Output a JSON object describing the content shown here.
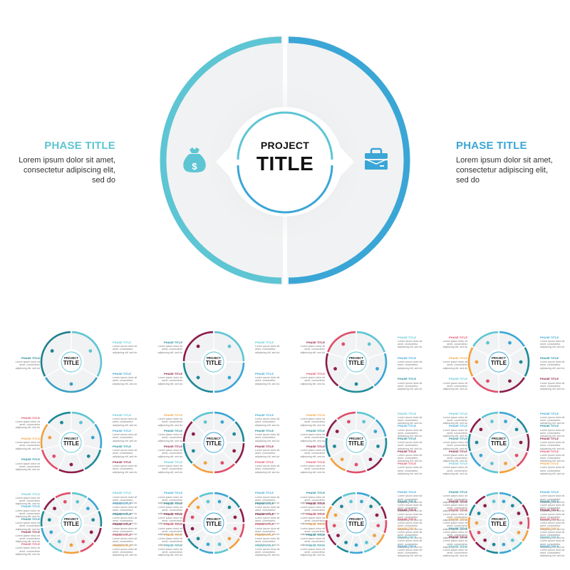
{
  "hero": {
    "center": {
      "line1": "PROJECT",
      "line2": "TITLE"
    },
    "phases": [
      {
        "title": "PHASE TITLE",
        "description": "Lorem ipsum dolor sit amet, consectetur adipiscing elit, sed do",
        "icon": "money-bag-icon",
        "color": "#5dc5d3",
        "side": "left"
      },
      {
        "title": "PHASE TITLE",
        "description": "Lorem ipsum dolor sit amet, consectetur adipiscing elit, sed do",
        "icon": "briefcase-icon",
        "color": "#3aa6d6",
        "side": "right"
      }
    ],
    "colors": {
      "ring_left": "#5dc5d3",
      "ring_right": "#3aa6d6",
      "disc": "#f1f2f3",
      "center_ring_top": "#5dc5d3",
      "center_ring_bottom": "#3aa6d6"
    }
  },
  "thumbnails": {
    "phase_title": "PHASE TITLE",
    "phase_desc": "Lorem ipsum dolor sit amet, consectetur adipiscing elit, sed do",
    "center": {
      "line1": "PROJECT",
      "line2": "TITLE"
    },
    "items": [
      {
        "segments": 3,
        "colors": [
          "#5dc5d3",
          "#3a9fc4",
          "#1e7f8f"
        ]
      },
      {
        "segments": 4,
        "colors": [
          "#5dc5d3",
          "#3aa6d6",
          "#1e8a99",
          "#8c1d4a"
        ]
      },
      {
        "segments": 5,
        "colors": [
          "#5dc5d3",
          "#3aa6d6",
          "#1e8a99",
          "#8c1d4a",
          "#e04e6a"
        ]
      },
      {
        "segments": 6,
        "colors": [
          "#3aa6d6",
          "#1e8a99",
          "#8c1d4a",
          "#e04e6a",
          "#f2a03d",
          "#5dc5d3"
        ]
      },
      {
        "segments": 7,
        "colors": [
          "#5dc5d3",
          "#3aa6d6",
          "#1e8a99",
          "#8c1d4a",
          "#e04e6a",
          "#f2a03d",
          "#1e8a99"
        ]
      },
      {
        "segments": 8,
        "colors": [
          "#3aa6d6",
          "#1e8a99",
          "#8c1d4a",
          "#e04e6a",
          "#f2a03d",
          "#1e8a99",
          "#8c1d4a",
          "#5dc5d3"
        ]
      },
      {
        "segments": 9,
        "colors": [
          "#5dc5d3",
          "#3aa6d6",
          "#1e8a99",
          "#8c1d4a",
          "#e04e6a",
          "#f2a03d",
          "#1e8a99",
          "#8c1d4a",
          "#e04e6a"
        ]
      },
      {
        "segments": 10,
        "colors": [
          "#3aa6d6",
          "#1e8a99",
          "#8c1d4a",
          "#e04e6a",
          "#f2a03d",
          "#5dc5d3",
          "#3aa6d6",
          "#1e8a99",
          "#8c1d4a",
          "#5dc5d3"
        ]
      },
      {
        "segments": 11,
        "colors": [
          "#5dc5d3",
          "#3aa6d6",
          "#1e8a99",
          "#8c1d4a",
          "#e04e6a",
          "#f2a03d",
          "#5dc5d3",
          "#3aa6d6",
          "#1e8a99",
          "#8c1d4a",
          "#e04e6a"
        ]
      },
      {
        "segments": 12,
        "colors": [
          "#3aa6d6",
          "#1e8a99",
          "#8c1d4a",
          "#e04e6a",
          "#f2a03d",
          "#5dc5d3",
          "#3aa6d6",
          "#1e8a99",
          "#8c1d4a",
          "#e04e6a",
          "#f2a03d",
          "#5dc5d3"
        ]
      },
      {
        "segments": 13,
        "colors": [
          "#3aa6d6",
          "#1e8a99",
          "#8c1d4a",
          "#e04e6a",
          "#f2a03d",
          "#5dc5d3",
          "#3aa6d6",
          "#1e8a99",
          "#8c1d4a",
          "#e04e6a",
          "#f2a03d",
          "#1e8a99",
          "#5dc5d3"
        ]
      },
      {
        "segments": 14,
        "colors": [
          "#3aa6d6",
          "#1e8a99",
          "#8c1d4a",
          "#e04e6a",
          "#f2a03d",
          "#5dc5d3",
          "#3aa6d6",
          "#1e8a99",
          "#8c1d4a",
          "#e04e6a",
          "#f2a03d",
          "#1e8a99",
          "#8c1d4a",
          "#5dc5d3"
        ]
      }
    ]
  }
}
